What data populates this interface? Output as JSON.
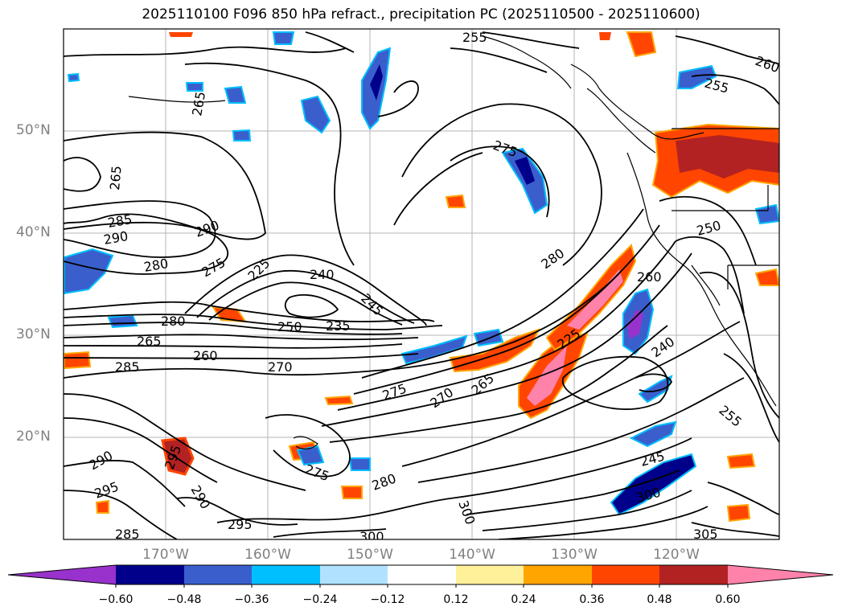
{
  "title": "2025110100 F096 850 hPa refract., precipitation PC (2025110500 - 2025110600)",
  "map": {
    "lat_labels": [
      "50°N",
      "40°N",
      "30°N",
      "20°N"
    ],
    "lon_labels": [
      "170°W",
      "160°W",
      "150°W",
      "140°W",
      "130°W",
      "120°W"
    ],
    "contour_labels": [
      "255",
      "260",
      "255",
      "265",
      "265",
      "285",
      "290",
      "290",
      "280",
      "275",
      "225",
      "240",
      "245",
      "280",
      "280",
      "235",
      "250",
      "265",
      "260",
      "285",
      "270",
      "275",
      "270",
      "265",
      "225",
      "240",
      "260",
      "255",
      "245",
      "300",
      "305",
      "295",
      "290",
      "295",
      "290",
      "275",
      "280",
      "300",
      "300",
      "285",
      "295",
      "250",
      "275"
    ]
  },
  "colorbar": {
    "ticks": [
      "−0.60",
      "−0.48",
      "−0.36",
      "−0.24",
      "−0.12",
      "0.12",
      "0.24",
      "0.36",
      "0.48",
      "0.60"
    ],
    "colors": [
      "#9932cc",
      "#00008b",
      "#3a5fcd",
      "#00bfff",
      "#b0e2ff",
      "#ffffff",
      "#fff09a",
      "#ffa500",
      "#ff4500",
      "#b22222",
      "#ff82ab"
    ]
  }
}
